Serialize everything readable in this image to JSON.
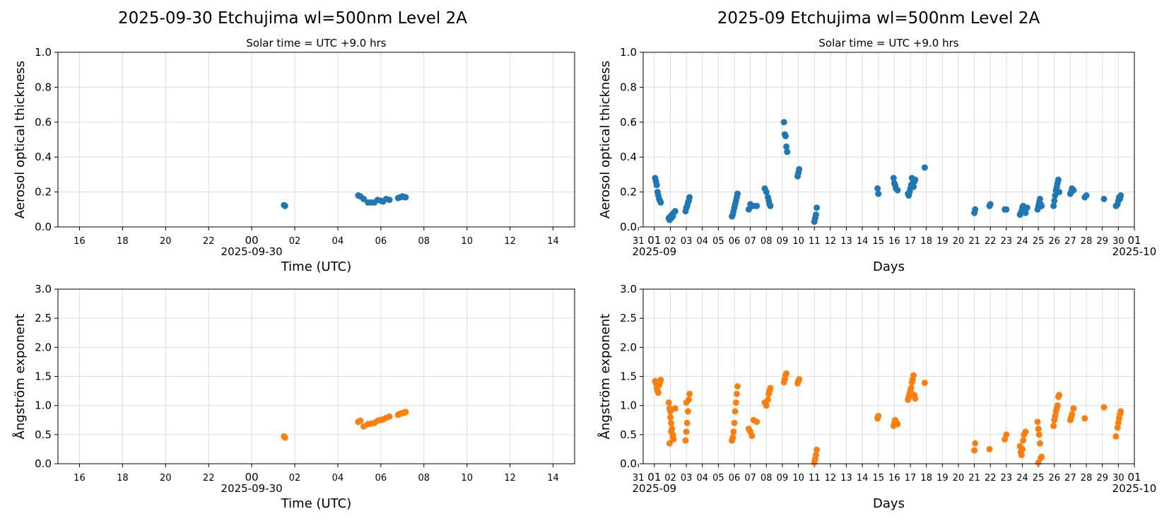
{
  "colors": {
    "aot": "#1f77b4",
    "angstrom": "#ff7f0e"
  },
  "left_title": "2025-09-30  Etchujima  wl=500nm  Level 2A",
  "right_title": "2025-09  Etchujima  wl=500nm  Level 2A",
  "solar_time_label": "Solar time = UTC +9.0 hrs",
  "chart_data": [
    {
      "id": "daily-aot",
      "type": "scatter",
      "subtitle": "Solar time = UTC +9.0 hrs",
      "xlabel": "Time (UTC)",
      "ylabel": "Aerosol optical thickness",
      "xlim_hours": [
        -9,
        15
      ],
      "ylim": [
        0,
        1.0
      ],
      "yticks": [
        0,
        0.2,
        0.4,
        0.6,
        0.8,
        1.0
      ],
      "ytick_labels": [
        "0.0",
        "0.2",
        "0.4",
        "0.6",
        "0.8",
        "1.0"
      ],
      "xtick_hours": [
        -8,
        -6,
        -4,
        -2,
        0,
        2,
        4,
        6,
        8,
        10,
        12,
        14
      ],
      "xtick_labels": [
        "16",
        "18",
        "20",
        "22",
        "00",
        "02",
        "04",
        "06",
        "08",
        "10",
        "12",
        "14"
      ],
      "date_label": "2025-09-30",
      "grid": true,
      "series": [
        {
          "color": "#1f77b4",
          "x": [
            1.5,
            1.55,
            4.95,
            5.05,
            5.2,
            5.4,
            5.55,
            5.7,
            5.85,
            6.0,
            6.1,
            6.25,
            6.4,
            6.8,
            6.9,
            7.0,
            7.1,
            7.15
          ],
          "y": [
            0.125,
            0.12,
            0.18,
            0.175,
            0.16,
            0.14,
            0.14,
            0.14,
            0.155,
            0.15,
            0.145,
            0.16,
            0.155,
            0.165,
            0.17,
            0.175,
            0.17,
            0.17
          ]
        }
      ]
    },
    {
      "id": "monthly-aot",
      "type": "scatter",
      "subtitle": "Solar time = UTC +9.0 hrs",
      "xlabel": "Days",
      "ylabel": "Aerosol optical thickness",
      "xlim_days": [
        0.3,
        31.0
      ],
      "ylim": [
        0,
        1.0
      ],
      "yticks": [
        0,
        0.2,
        0.4,
        0.6,
        0.8,
        1.0
      ],
      "ytick_labels": [
        "0.0",
        "0.2",
        "0.4",
        "0.6",
        "0.8",
        "1.0"
      ],
      "xtick_days": [
        0,
        1,
        2,
        3,
        4,
        5,
        6,
        7,
        8,
        9,
        10,
        11,
        12,
        13,
        14,
        15,
        16,
        17,
        18,
        19,
        20,
        21,
        22,
        23,
        24,
        25,
        26,
        27,
        28,
        29,
        30,
        31
      ],
      "xtick_labels": [
        "31",
        "01",
        "02",
        "03",
        "04",
        "05",
        "06",
        "07",
        "08",
        "09",
        "10",
        "11",
        "12",
        "13",
        "14",
        "15",
        "16",
        "17",
        "18",
        "19",
        "20",
        "21",
        "22",
        "23",
        "24",
        "25",
        "26",
        "27",
        "28",
        "29",
        "30",
        "01"
      ],
      "x_start_label": "2025-09",
      "x_end_label": "2025-10",
      "grid": true,
      "series": [
        {
          "color": "#1f77b4",
          "x": [
            1.05,
            1.1,
            1.15,
            1.2,
            1.25,
            1.3,
            1.35,
            1.4,
            1.9,
            1.95,
            2.0,
            2.05,
            2.1,
            2.15,
            2.2,
            2.3,
            2.95,
            3.0,
            3.05,
            3.1,
            3.15,
            3.2,
            5.85,
            5.9,
            5.95,
            6.0,
            6.05,
            6.1,
            6.15,
            6.2,
            6.9,
            7.0,
            7.1,
            7.2,
            7.4,
            7.9,
            8.0,
            8.1,
            8.15,
            8.2,
            8.25,
            9.1,
            9.15,
            9.2,
            9.25,
            9.3,
            9.95,
            10.0,
            10.05,
            11.0,
            11.05,
            11.1,
            11.15,
            14.95,
            15.0,
            15.95,
            16.0,
            16.05,
            16.1,
            16.2,
            16.85,
            16.9,
            16.95,
            17.0,
            17.05,
            17.1,
            17.15,
            17.2,
            17.25,
            17.3,
            17.9,
            21.0,
            21.05,
            21.95,
            22.0,
            22.9,
            23.0,
            23.85,
            23.9,
            23.95,
            24.0,
            24.05,
            24.1,
            24.2,
            24.3,
            24.95,
            25.0,
            25.05,
            25.1,
            25.15,
            25.2,
            25.95,
            26.0,
            26.05,
            26.1,
            26.15,
            26.2,
            26.25,
            26.3,
            27.0,
            27.05,
            27.1,
            27.2,
            27.9,
            28.0,
            29.1,
            29.85,
            29.95,
            30.0,
            30.05,
            30.1,
            30.15
          ],
          "y": [
            0.28,
            0.26,
            0.24,
            0.2,
            0.18,
            0.16,
            0.15,
            0.14,
            0.05,
            0.04,
            0.06,
            0.05,
            0.07,
            0.06,
            0.08,
            0.09,
            0.09,
            0.11,
            0.12,
            0.14,
            0.15,
            0.17,
            0.06,
            0.07,
            0.09,
            0.11,
            0.13,
            0.15,
            0.17,
            0.19,
            0.1,
            0.13,
            0.12,
            0.12,
            0.12,
            0.22,
            0.2,
            0.17,
            0.15,
            0.13,
            0.12,
            0.6,
            0.53,
            0.52,
            0.46,
            0.43,
            0.29,
            0.31,
            0.33,
            0.03,
            0.05,
            0.07,
            0.11,
            0.22,
            0.19,
            0.28,
            0.25,
            0.24,
            0.22,
            0.21,
            0.19,
            0.18,
            0.2,
            0.22,
            0.24,
            0.28,
            0.25,
            0.23,
            0.26,
            0.27,
            0.34,
            0.08,
            0.1,
            0.12,
            0.13,
            0.1,
            0.1,
            0.07,
            0.08,
            0.09,
            0.11,
            0.12,
            0.1,
            0.08,
            0.11,
            0.1,
            0.12,
            0.14,
            0.16,
            0.13,
            0.12,
            0.12,
            0.15,
            0.18,
            0.21,
            0.23,
            0.25,
            0.27,
            0.2,
            0.19,
            0.2,
            0.22,
            0.21,
            0.17,
            0.18,
            0.16,
            0.12,
            0.13,
            0.15,
            0.17,
            0.16,
            0.18
          ]
        }
      ]
    },
    {
      "id": "daily-angstrom",
      "type": "scatter",
      "xlabel": "Time (UTC)",
      "ylabel": "Ångström exponent",
      "xlim_hours": [
        -9,
        15
      ],
      "ylim": [
        0,
        3.0
      ],
      "yticks": [
        0,
        0.5,
        1.0,
        1.5,
        2.0,
        2.5,
        3.0
      ],
      "ytick_labels": [
        "0.0",
        "0.5",
        "1.0",
        "1.5",
        "2.0",
        "2.5",
        "3.0"
      ],
      "xtick_hours": [
        -8,
        -6,
        -4,
        -2,
        0,
        2,
        4,
        6,
        8,
        10,
        12,
        14
      ],
      "xtick_labels": [
        "16",
        "18",
        "20",
        "22",
        "00",
        "02",
        "04",
        "06",
        "08",
        "10",
        "12",
        "14"
      ],
      "date_label": "2025-09-30",
      "grid": true,
      "series": [
        {
          "color": "#ff7f0e",
          "x": [
            1.5,
            1.55,
            4.95,
            5.05,
            5.2,
            5.4,
            5.55,
            5.7,
            5.85,
            6.0,
            6.1,
            6.25,
            6.4,
            6.8,
            6.9,
            7.0,
            7.1,
            7.15
          ],
          "y": [
            0.47,
            0.45,
            0.72,
            0.74,
            0.64,
            0.68,
            0.69,
            0.7,
            0.74,
            0.75,
            0.76,
            0.79,
            0.81,
            0.84,
            0.86,
            0.87,
            0.88,
            0.89
          ]
        }
      ]
    },
    {
      "id": "monthly-angstrom",
      "type": "scatter",
      "xlabel": "Days",
      "ylabel": "Ångström exponent",
      "xlim_days": [
        0.3,
        31.0
      ],
      "ylim": [
        0,
        3.0
      ],
      "yticks": [
        0,
        0.5,
        1.0,
        1.5,
        2.0,
        2.5,
        3.0
      ],
      "ytick_labels": [
        "0.0",
        "0.5",
        "1.0",
        "1.5",
        "2.0",
        "2.5",
        "3.0"
      ],
      "xtick_days": [
        0,
        1,
        2,
        3,
        4,
        5,
        6,
        7,
        8,
        9,
        10,
        11,
        12,
        13,
        14,
        15,
        16,
        17,
        18,
        19,
        20,
        21,
        22,
        23,
        24,
        25,
        26,
        27,
        28,
        29,
        30,
        31
      ],
      "xtick_labels": [
        "31",
        "01",
        "02",
        "03",
        "04",
        "05",
        "06",
        "07",
        "08",
        "09",
        "10",
        "11",
        "12",
        "13",
        "14",
        "15",
        "16",
        "17",
        "18",
        "19",
        "20",
        "21",
        "22",
        "23",
        "24",
        "25",
        "26",
        "27",
        "28",
        "29",
        "30",
        "01"
      ],
      "x_start_label": "2025-09",
      "x_end_label": "2025-10",
      "grid": true,
      "series": [
        {
          "color": "#ff7f0e",
          "x": [
            1.05,
            1.1,
            1.15,
            1.2,
            1.25,
            1.3,
            1.35,
            1.4,
            1.9,
            1.95,
            2.0,
            2.05,
            2.1,
            2.15,
            2.2,
            2.3,
            1.95,
            2.05,
            2.15,
            2.0,
            2.95,
            3.0,
            3.05,
            3.1,
            3.15,
            3.2,
            3.0,
            5.85,
            5.9,
            5.95,
            6.0,
            6.05,
            6.1,
            6.15,
            6.2,
            6.9,
            7.0,
            7.1,
            7.2,
            7.4,
            7.9,
            8.0,
            8.1,
            8.15,
            8.2,
            8.25,
            9.1,
            9.15,
            9.2,
            9.25,
            9.95,
            10.0,
            10.05,
            11.0,
            11.05,
            11.1,
            11.15,
            14.95,
            15.0,
            15.95,
            16.0,
            16.05,
            16.1,
            16.2,
            16.85,
            16.9,
            16.95,
            17.0,
            17.05,
            17.1,
            17.15,
            17.2,
            17.25,
            17.3,
            17.9,
            21.0,
            21.05,
            21.95,
            22.9,
            23.0,
            23.85,
            23.9,
            23.95,
            24.0,
            24.05,
            24.1,
            24.2,
            24.95,
            25.0,
            25.05,
            25.1,
            25.15,
            25.2,
            25.0,
            25.95,
            26.0,
            26.05,
            26.1,
            26.15,
            26.2,
            26.25,
            26.3,
            27.0,
            27.05,
            27.1,
            27.2,
            27.9,
            29.1,
            29.85,
            29.95,
            30.0,
            30.05,
            30.1,
            30.15
          ],
          "y": [
            1.42,
            1.38,
            1.3,
            1.25,
            1.22,
            1.35,
            1.4,
            1.44,
            1.05,
            0.95,
            0.8,
            0.7,
            0.6,
            0.5,
            0.42,
            0.95,
            0.35,
            0.55,
            0.45,
            0.9,
            0.4,
            0.55,
            0.7,
            0.9,
            1.1,
            1.2,
            1.05,
            0.4,
            0.45,
            0.55,
            0.7,
            0.9,
            1.05,
            1.2,
            1.33,
            0.6,
            0.55,
            0.48,
            0.75,
            0.72,
            1.05,
            1.0,
            1.1,
            1.2,
            1.25,
            1.3,
            1.4,
            1.45,
            1.52,
            1.55,
            1.38,
            1.42,
            1.45,
            0.02,
            0.08,
            0.15,
            0.24,
            0.78,
            0.82,
            0.65,
            0.7,
            0.75,
            0.72,
            0.68,
            1.1,
            1.15,
            1.2,
            1.25,
            1.3,
            1.4,
            1.45,
            1.52,
            1.18,
            1.12,
            1.39,
            0.23,
            0.35,
            0.25,
            0.42,
            0.5,
            0.3,
            0.2,
            0.15,
            0.25,
            0.4,
            0.5,
            0.55,
            0.72,
            0.6,
            0.5,
            0.35,
            0.1,
            0.12,
            0.02,
            0.65,
            0.75,
            0.82,
            0.9,
            0.95,
            1.0,
            1.15,
            1.18,
            0.75,
            0.8,
            0.85,
            0.95,
            0.78,
            0.97,
            0.47,
            0.62,
            0.7,
            0.78,
            0.85,
            0.9
          ]
        }
      ]
    }
  ]
}
